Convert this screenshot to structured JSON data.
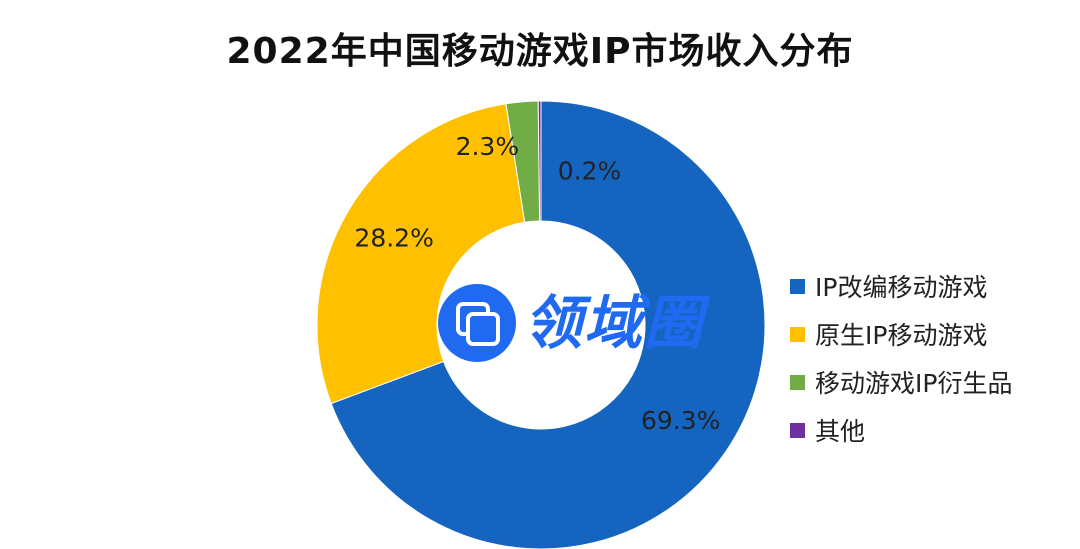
{
  "chart_data": {
    "type": "pie",
    "title": "2022年中国移动游戏IP市场收入分布",
    "categories": [
      "IP改编移动游戏",
      "原生IP移动游戏",
      "移动游戏IP衍生品",
      "其他"
    ],
    "values": [
      69.3,
      28.2,
      2.3,
      0.2
    ],
    "value_labels": [
      "69.3%",
      "28.2%",
      "2.3%",
      "0.2%"
    ],
    "colors": [
      "#1565c0",
      "#ffc000",
      "#70ad47",
      "#7030a0"
    ],
    "legend_position": "right"
  },
  "watermark": {
    "text": "领域圈",
    "color": "#1f6af0"
  }
}
